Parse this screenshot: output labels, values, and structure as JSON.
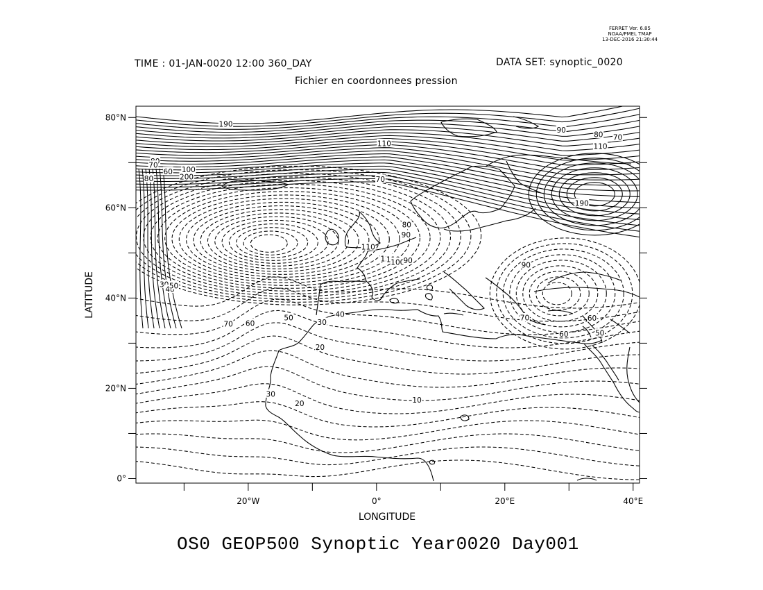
{
  "stamp": {
    "line1": "FERRET Ver. 6.85",
    "line2": "NOAA/PMEL TMAP",
    "line3": "13-DEC-2016 21:30:44"
  },
  "header": {
    "time_label": "TIME : 01-JAN-0020 12:00 360_DAY",
    "dataset_label": "DATA SET: synoptic_0020",
    "subtitle": "Fichier en coordonnees pression"
  },
  "axes": {
    "xlabel": "LONGITUDE",
    "ylabel": "LATITUDE",
    "xlim": [
      -37.5,
      41
    ],
    "ylim": [
      -1,
      82.5
    ],
    "xticks": [
      {
        "value": -30,
        "label": ""
      },
      {
        "value": -20,
        "label": "20°W"
      },
      {
        "value": -10,
        "label": ""
      },
      {
        "value": 0,
        "label": "0°"
      },
      {
        "value": 10,
        "label": ""
      },
      {
        "value": 20,
        "label": "20°E"
      },
      {
        "value": 30,
        "label": ""
      },
      {
        "value": 40,
        "label": "40°E"
      }
    ],
    "yticks": [
      {
        "value": 0,
        "label": "0°"
      },
      {
        "value": 10,
        "label": ""
      },
      {
        "value": 20,
        "label": "20°N"
      },
      {
        "value": 30,
        "label": ""
      },
      {
        "value": 40,
        "label": "40°N"
      },
      {
        "value": 50,
        "label": ""
      },
      {
        "value": 60,
        "label": "60°N"
      },
      {
        "value": 70,
        "label": ""
      },
      {
        "value": 80,
        "label": "80°N"
      }
    ]
  },
  "chart_data": {
    "type": "contour",
    "variable": "GEOP500",
    "positive_contours": "solid",
    "negative_contours": "dashed",
    "contour_labels": [
      {
        "text": "190",
        "lon": -23.5,
        "lat": 78.5
      },
      {
        "text": "110",
        "lon": 1.2,
        "lat": 74.2
      },
      {
        "text": "90",
        "lon": 28.8,
        "lat": 77.2
      },
      {
        "text": "80",
        "lon": 34.6,
        "lat": 76.2
      },
      {
        "text": "70",
        "lon": 37.6,
        "lat": 75.6
      },
      {
        "text": "110",
        "lon": 34.9,
        "lat": 73.6
      },
      {
        "text": "70",
        "lon": 0.6,
        "lat": 66.3
      },
      {
        "text": "80",
        "lon": -34.5,
        "lat": 70.3
      },
      {
        "text": "70",
        "lon": -34.8,
        "lat": 69.4
      },
      {
        "text": "60",
        "lon": -32.5,
        "lat": 68.0
      },
      {
        "text": "80",
        "lon": -35.5,
        "lat": 66.4
      },
      {
        "text": "100",
        "lon": -29.3,
        "lat": 68.4
      },
      {
        "text": "200",
        "lon": -29.6,
        "lat": 66.8
      },
      {
        "text": "190",
        "lon": 32.0,
        "lat": 61.0
      },
      {
        "text": "80",
        "lon": 4.7,
        "lat": 56.2
      },
      {
        "text": "90",
        "lon": 4.6,
        "lat": 54.0
      },
      {
        "text": "120",
        "lon": 1.7,
        "lat": 48.7
      },
      {
        "text": "110",
        "lon": 2.6,
        "lat": 48.5
      },
      {
        "text": "100",
        "lon": 3.3,
        "lat": 47.9
      },
      {
        "text": "90",
        "lon": 4.9,
        "lat": 48.3
      },
      {
        "text": "90",
        "lon": 23.3,
        "lat": 47.3
      },
      {
        "text": "110",
        "lon": -1.3,
        "lat": 51.3
      },
      {
        "text": "30",
        "lon": -33.1,
        "lat": 43.0
      },
      {
        "text": "40",
        "lon": -32.2,
        "lat": 41.9
      },
      {
        "text": "50",
        "lon": -31.6,
        "lat": 42.7
      },
      {
        "text": "70",
        "lon": -23.1,
        "lat": 34.2
      },
      {
        "text": "60",
        "lon": -19.7,
        "lat": 34.4
      },
      {
        "text": "50",
        "lon": -13.7,
        "lat": 35.6
      },
      {
        "text": "30",
        "lon": -8.5,
        "lat": 34.6
      },
      {
        "text": "40",
        "lon": -5.7,
        "lat": 36.4
      },
      {
        "text": "20",
        "lon": -8.8,
        "lat": 29.1
      },
      {
        "text": "30",
        "lon": -16.5,
        "lat": 18.7
      },
      {
        "text": "20",
        "lon": -12.0,
        "lat": 16.6
      },
      {
        "text": "10",
        "lon": 6.3,
        "lat": 17.4
      },
      {
        "text": "70",
        "lon": 23.1,
        "lat": 35.6
      },
      {
        "text": "60",
        "lon": 29.2,
        "lat": 32.0
      },
      {
        "text": "60",
        "lon": 33.6,
        "lat": 35.5
      },
      {
        "text": "50",
        "lon": 34.8,
        "lat": 32.2
      }
    ]
  },
  "footer": {
    "title": "OS0 GEOP500 Synoptic Year0020 Day001"
  }
}
